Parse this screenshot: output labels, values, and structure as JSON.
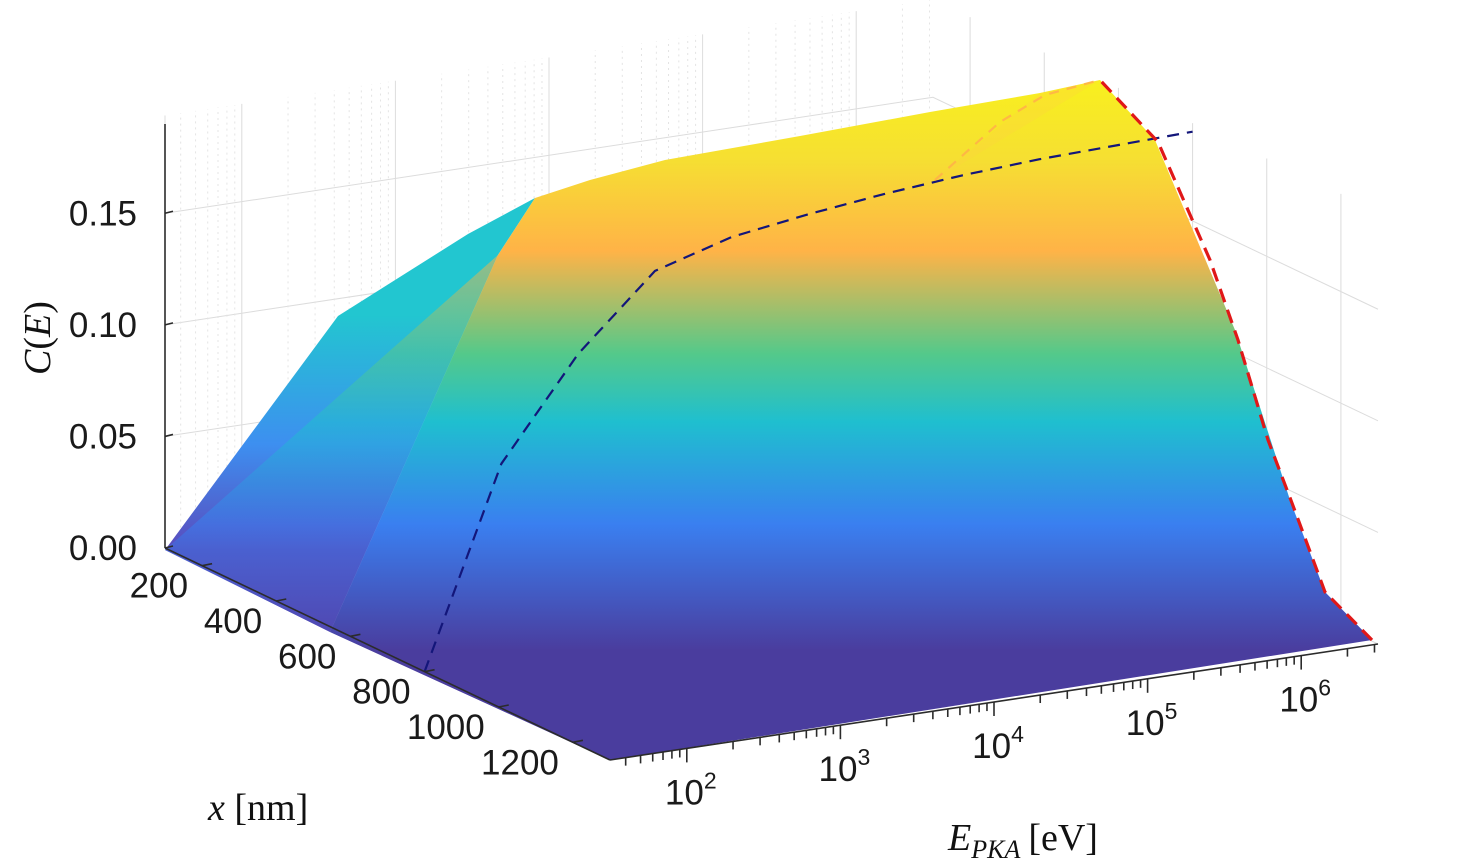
{
  "chart_data": {
    "type": "surface",
    "title": "",
    "xlabel": "x [nm]",
    "xlabel_var": "x",
    "xlabel_unit": "[nm]",
    "ylabel_var": "E",
    "ylabel_sub": "PKA",
    "ylabel_unit": "[eV]",
    "zlabel": "C(E)",
    "x_ticks": [
      "200",
      "400",
      "600",
      "800",
      "1000",
      "1200"
    ],
    "e_ticks": [
      {
        "base": "10",
        "exp": "2"
      },
      {
        "base": "10",
        "exp": "3"
      },
      {
        "base": "10",
        "exp": "4"
      },
      {
        "base": "10",
        "exp": "5"
      },
      {
        "base": "10",
        "exp": "6"
      }
    ],
    "z_ticks": [
      "0.00",
      "0.05",
      "0.10",
      "0.15"
    ],
    "x_range": [
      100,
      1300
    ],
    "e_log_range": [
      1.5,
      6.5
    ],
    "z_range": [
      0,
      0.19
    ],
    "grid": true,
    "colormap": "parula",
    "colors": {
      "low": "#4a3d9e",
      "mid_blue": "#3a7ff0",
      "cyan": "#1fbfcf",
      "green": "#54c98a",
      "orange": "#ffb347",
      "yellow": "#f8f01e",
      "dashed_blue": "#13167a",
      "dashed_red": "#e01818"
    },
    "profile_x_nm": 800,
    "profile_log_e": [
      1.5,
      2.0,
      2.5,
      3.0,
      3.5,
      4.0,
      4.5,
      5.0,
      5.5,
      6.0,
      6.5
    ],
    "profile_c": [
      0.0,
      0.088,
      0.132,
      0.164,
      0.174,
      0.179,
      0.183,
      0.186,
      0.188,
      0.189,
      0.19
    ],
    "edge_x_nm": 100,
    "edge_log_e": [
      6.5,
      6.45,
      6.35,
      6.15,
      5.85,
      5.4
    ],
    "edge_c": [
      0.0,
      0.008,
      0.035,
      0.11,
      0.17,
      0.19
    ]
  }
}
